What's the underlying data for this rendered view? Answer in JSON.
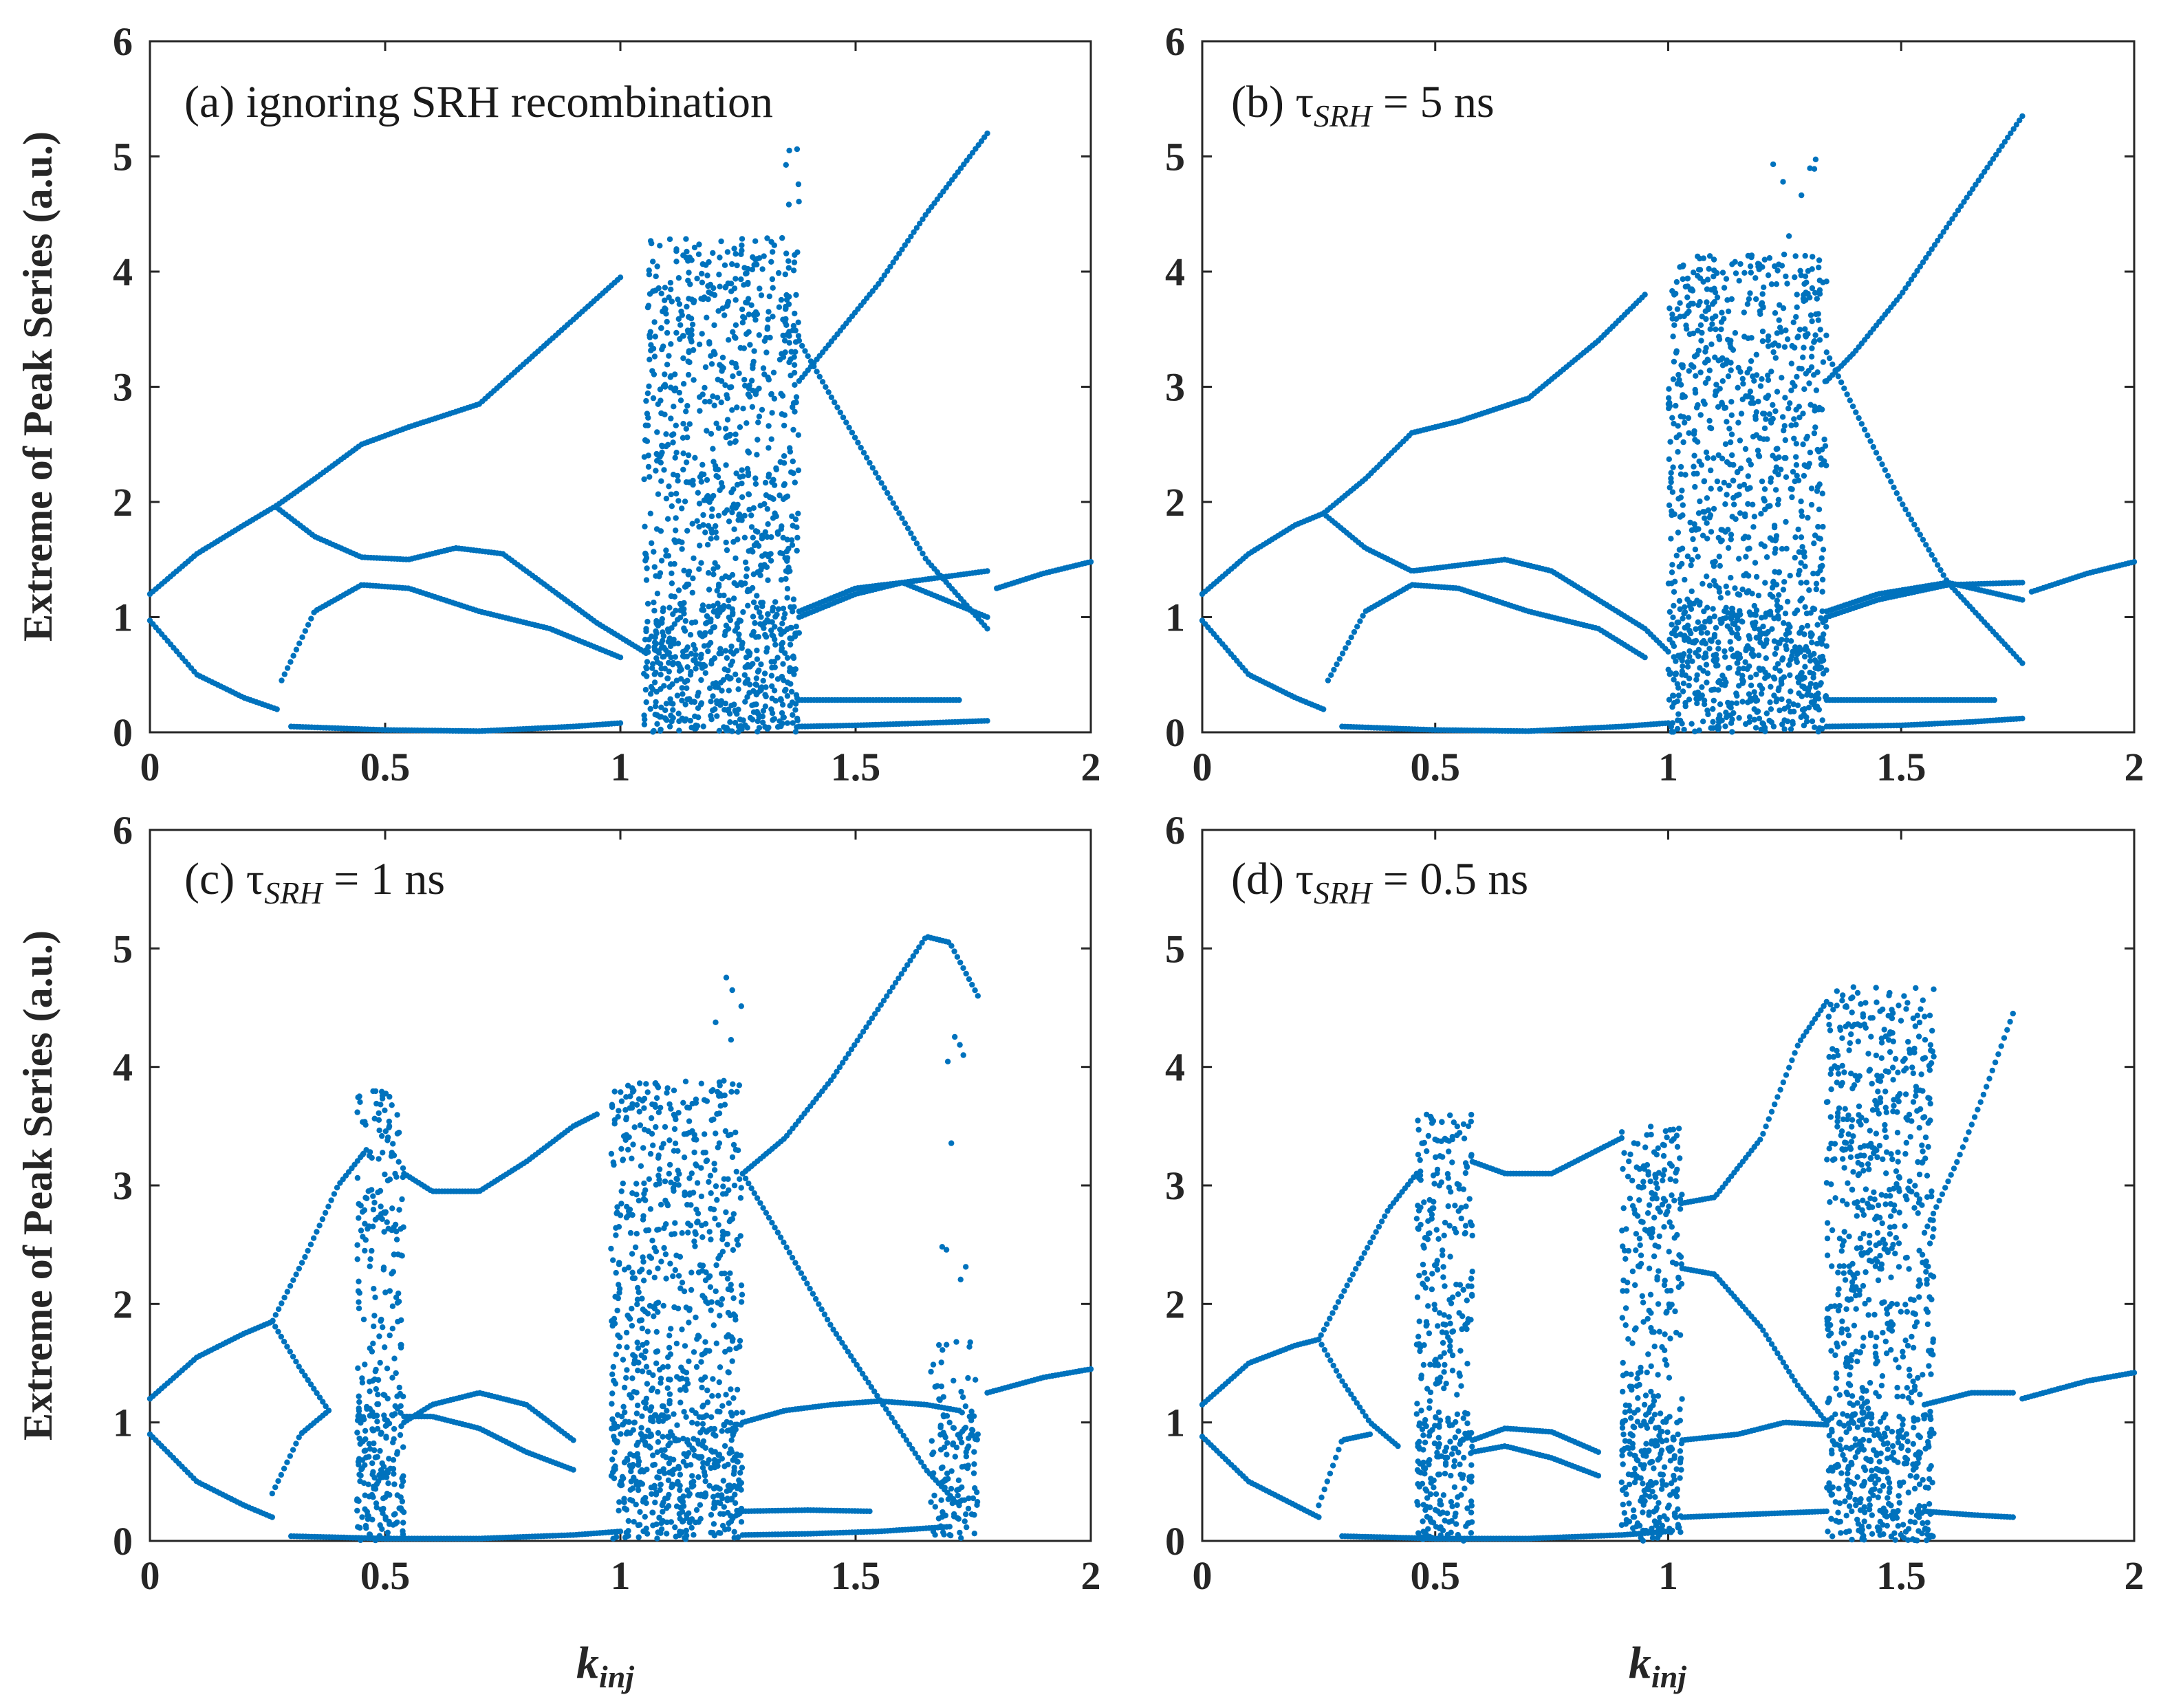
{
  "figure": {
    "ylabel": "Extreme of Peak Series (a.u.)",
    "xlabel_main": "k",
    "xlabel_sub": "inj"
  },
  "chart_data": [
    {
      "type": "scatter",
      "panel": "a",
      "annotation": {
        "prefix": "(a)  ignoring  SRH recombination",
        "tau": "",
        "sub": "",
        "suffix": ""
      },
      "xlim": [
        0,
        2
      ],
      "ylim": [
        0,
        6
      ],
      "xticks": [
        "0",
        "0.5",
        "1",
        "1.5",
        "2"
      ],
      "yticks": [
        "0",
        "1",
        "2",
        "3",
        "4",
        "5",
        "6"
      ],
      "color": "#0072BD",
      "series": [
        {
          "name": "upper",
          "x": [
            0,
            0.1,
            0.2,
            0.27,
            0.35,
            0.45,
            0.55,
            0.7,
            0.85,
            1.0
          ],
          "y": [
            1.2,
            1.55,
            1.8,
            1.97,
            2.2,
            2.5,
            2.65,
            2.85,
            3.4,
            3.95
          ]
        },
        {
          "name": "mid-upper",
          "x": [
            0.27,
            0.35,
            0.45,
            0.55,
            0.65,
            0.75,
            0.85,
            0.95,
            1.05
          ],
          "y": [
            1.95,
            1.7,
            1.52,
            1.5,
            1.6,
            1.55,
            1.25,
            0.95,
            0.7
          ]
        },
        {
          "name": "mid-lower",
          "x": [
            0.28,
            0.35,
            0.45,
            0.55,
            0.7,
            0.85,
            1.0
          ],
          "y": [
            0.45,
            1.05,
            1.28,
            1.25,
            1.05,
            0.9,
            0.65
          ]
        },
        {
          "name": "lower",
          "x": [
            0,
            0.1,
            0.2,
            0.27
          ],
          "y": [
            0.97,
            0.5,
            0.3,
            0.2
          ]
        },
        {
          "name": "floor",
          "x": [
            0.3,
            0.5,
            0.7,
            0.9,
            1.0
          ],
          "y": [
            0.05,
            0.02,
            0.01,
            0.05,
            0.08
          ]
        },
        {
          "name": "post-1",
          "x": [
            1.38,
            1.45,
            1.55,
            1.65,
            1.78
          ],
          "y": [
            3.05,
            3.4,
            3.9,
            4.5,
            5.2
          ]
        },
        {
          "name": "post-2",
          "x": [
            1.38,
            1.45,
            1.55,
            1.65,
            1.78
          ],
          "y": [
            3.4,
            2.9,
            2.2,
            1.5,
            0.9
          ]
        },
        {
          "name": "post-3",
          "x": [
            1.38,
            1.5,
            1.6,
            1.78
          ],
          "y": [
            1.0,
            1.2,
            1.3,
            1.4
          ]
        },
        {
          "name": "post-4",
          "x": [
            1.38,
            1.5,
            1.6,
            1.78
          ],
          "y": [
            1.05,
            1.25,
            1.3,
            1.0
          ]
        },
        {
          "name": "post-5",
          "x": [
            1.38,
            1.5,
            1.6,
            1.72
          ],
          "y": [
            0.28,
            0.28,
            0.28,
            0.28
          ]
        },
        {
          "name": "post-6",
          "x": [
            1.38,
            1.5,
            1.65,
            1.78
          ],
          "y": [
            0.05,
            0.06,
            0.08,
            0.1
          ]
        },
        {
          "name": "tail",
          "x": [
            1.8,
            1.9,
            2.0
          ],
          "y": [
            1.25,
            1.38,
            1.48
          ]
        }
      ],
      "chaos": [
        {
          "x": [
            1.05,
            1.38
          ],
          "y": [
            0.0,
            4.3
          ],
          "density": "high"
        },
        {
          "x": [
            1.28,
            1.38
          ],
          "y": [
            4.3,
            5.2
          ],
          "density": "sparse"
        }
      ]
    },
    {
      "type": "scatter",
      "panel": "b",
      "annotation": {
        "prefix": "(b)  ",
        "tau": "τ",
        "sub": "SRH",
        "suffix": " = 5 ns"
      },
      "xlim": [
        0,
        2
      ],
      "ylim": [
        0,
        6
      ],
      "xticks": [
        "0",
        "0.5",
        "1",
        "1.5",
        "2"
      ],
      "yticks": [
        "0",
        "1",
        "2",
        "3",
        "4",
        "5",
        "6"
      ],
      "color": "#0072BD",
      "series": [
        {
          "name": "upper",
          "x": [
            0,
            0.1,
            0.2,
            0.26,
            0.35,
            0.45,
            0.55,
            0.7,
            0.85,
            0.95
          ],
          "y": [
            1.2,
            1.55,
            1.8,
            1.9,
            2.2,
            2.6,
            2.7,
            2.9,
            3.4,
            3.8
          ]
        },
        {
          "name": "mid-upper",
          "x": [
            0.26,
            0.35,
            0.45,
            0.55,
            0.65,
            0.75,
            0.85,
            0.95,
            1.0
          ],
          "y": [
            1.9,
            1.6,
            1.4,
            1.45,
            1.5,
            1.4,
            1.15,
            0.9,
            0.7
          ]
        },
        {
          "name": "mid-lower",
          "x": [
            0.27,
            0.35,
            0.45,
            0.55,
            0.7,
            0.85,
            0.95
          ],
          "y": [
            0.45,
            1.05,
            1.28,
            1.25,
            1.05,
            0.9,
            0.65
          ]
        },
        {
          "name": "lower",
          "x": [
            0,
            0.1,
            0.2,
            0.26
          ],
          "y": [
            0.97,
            0.5,
            0.3,
            0.2
          ]
        },
        {
          "name": "floor",
          "x": [
            0.3,
            0.5,
            0.7,
            0.9,
            1.0
          ],
          "y": [
            0.05,
            0.02,
            0.01,
            0.05,
            0.08
          ]
        },
        {
          "name": "post-1",
          "x": [
            1.34,
            1.4,
            1.5,
            1.6,
            1.76
          ],
          "y": [
            3.05,
            3.3,
            3.8,
            4.4,
            5.35
          ]
        },
        {
          "name": "post-2",
          "x": [
            1.34,
            1.4,
            1.5,
            1.6,
            1.76
          ],
          "y": [
            3.3,
            2.8,
            2.0,
            1.3,
            0.6
          ]
        },
        {
          "name": "post-3",
          "x": [
            1.34,
            1.45,
            1.6,
            1.76
          ],
          "y": [
            1.0,
            1.15,
            1.28,
            1.3
          ]
        },
        {
          "name": "post-4",
          "x": [
            1.34,
            1.45,
            1.6,
            1.76
          ],
          "y": [
            1.05,
            1.2,
            1.3,
            1.15
          ]
        },
        {
          "name": "post-5",
          "x": [
            1.34,
            1.5,
            1.7
          ],
          "y": [
            0.28,
            0.28,
            0.28
          ]
        },
        {
          "name": "post-6",
          "x": [
            1.34,
            1.5,
            1.65,
            1.76
          ],
          "y": [
            0.05,
            0.06,
            0.09,
            0.12
          ]
        },
        {
          "name": "tail",
          "x": [
            1.78,
            1.9,
            2.0
          ],
          "y": [
            1.22,
            1.38,
            1.48
          ]
        }
      ],
      "chaos": [
        {
          "x": [
            1.0,
            1.34
          ],
          "y": [
            0.0,
            4.15
          ],
          "density": "high"
        },
        {
          "x": [
            1.22,
            1.32
          ],
          "y": [
            4.15,
            5.15
          ],
          "density": "sparse"
        }
      ]
    },
    {
      "type": "scatter",
      "panel": "c",
      "annotation": {
        "prefix": "(c)  ",
        "tau": "τ",
        "sub": "SRH",
        "suffix": " = 1 ns"
      },
      "xlim": [
        0,
        2
      ],
      "ylim": [
        0,
        6
      ],
      "xticks": [
        "0",
        "0.5",
        "1",
        "1.5",
        "2"
      ],
      "yticks": [
        "0",
        "1",
        "2",
        "3",
        "4",
        "5",
        "6"
      ],
      "color": "#0072BD",
      "series": [
        {
          "name": "upper",
          "x": [
            0,
            0.1,
            0.2,
            0.26,
            0.33,
            0.4,
            0.46
          ],
          "y": [
            1.2,
            1.55,
            1.75,
            1.85,
            2.4,
            3.0,
            3.3
          ]
        },
        {
          "name": "branch",
          "x": [
            0.26,
            0.32,
            0.38
          ],
          "y": [
            1.85,
            1.45,
            1.1
          ]
        },
        {
          "name": "lower",
          "x": [
            0,
            0.1,
            0.2,
            0.26
          ],
          "y": [
            0.9,
            0.5,
            0.3,
            0.2
          ]
        },
        {
          "name": "low-mid",
          "x": [
            0.26,
            0.32,
            0.38
          ],
          "y": [
            0.4,
            0.9,
            1.1
          ]
        },
        {
          "name": "floor",
          "x": [
            0.3,
            0.5,
            0.7,
            0.9,
            1.0
          ],
          "y": [
            0.04,
            0.02,
            0.02,
            0.05,
            0.08
          ]
        },
        {
          "name": "win1-upper",
          "x": [
            0.54,
            0.6,
            0.7,
            0.8,
            0.9,
            0.95
          ],
          "y": [
            3.1,
            2.95,
            2.95,
            3.2,
            3.5,
            3.6
          ]
        },
        {
          "name": "win1-mid1",
          "x": [
            0.54,
            0.6,
            0.7,
            0.8,
            0.9
          ],
          "y": [
            1.0,
            1.15,
            1.25,
            1.15,
            0.85
          ]
        },
        {
          "name": "win1-mid2",
          "x": [
            0.54,
            0.6,
            0.7,
            0.8,
            0.9
          ],
          "y": [
            1.05,
            1.05,
            0.95,
            0.75,
            0.6
          ]
        },
        {
          "name": "post-1",
          "x": [
            1.26,
            1.35,
            1.45,
            1.55,
            1.65,
            1.7,
            1.76
          ],
          "y": [
            3.1,
            3.4,
            3.9,
            4.5,
            5.1,
            5.05,
            4.6
          ]
        },
        {
          "name": "post-2",
          "x": [
            1.26,
            1.35,
            1.45,
            1.55,
            1.65,
            1.72
          ],
          "y": [
            3.1,
            2.5,
            1.8,
            1.2,
            0.6,
            0.3
          ]
        },
        {
          "name": "post-3",
          "x": [
            1.26,
            1.35,
            1.45,
            1.55,
            1.65,
            1.72
          ],
          "y": [
            1.0,
            1.1,
            1.15,
            1.18,
            1.15,
            1.1
          ]
        },
        {
          "name": "post-4",
          "x": [
            1.26,
            1.4,
            1.53
          ],
          "y": [
            0.25,
            0.26,
            0.25
          ]
        },
        {
          "name": "post-5",
          "x": [
            1.26,
            1.4,
            1.55,
            1.7
          ],
          "y": [
            0.05,
            0.06,
            0.08,
            0.12
          ]
        },
        {
          "name": "tail",
          "x": [
            1.78,
            1.9,
            2.0
          ],
          "y": [
            1.25,
            1.38,
            1.45
          ]
        }
      ],
      "chaos": [
        {
          "x": [
            0.44,
            0.54
          ],
          "y": [
            0.0,
            3.8
          ],
          "density": "high"
        },
        {
          "x": [
            0.98,
            1.26
          ],
          "y": [
            0.0,
            3.9
          ],
          "density": "high"
        },
        {
          "x": [
            1.2,
            1.26
          ],
          "y": [
            3.9,
            5.0
          ],
          "density": "sparse"
        },
        {
          "x": [
            1.66,
            1.76
          ],
          "y": [
            0.0,
            1.7
          ],
          "density": "medium"
        },
        {
          "x": [
            1.68,
            1.74
          ],
          "y": [
            2.2,
            4.3
          ],
          "density": "sparse"
        }
      ]
    },
    {
      "type": "scatter",
      "panel": "d",
      "annotation": {
        "prefix": "(d)  ",
        "tau": "τ",
        "sub": "SRH",
        "suffix": " = 0.5 ns"
      },
      "xlim": [
        0,
        2
      ],
      "ylim": [
        0,
        6
      ],
      "xticks": [
        "0",
        "0.5",
        "1",
        "1.5",
        "2"
      ],
      "yticks": [
        "0",
        "1",
        "2",
        "3",
        "4",
        "5",
        "6"
      ],
      "color": "#0072BD",
      "series": [
        {
          "name": "upper",
          "x": [
            0,
            0.1,
            0.2,
            0.25,
            0.33,
            0.4,
            0.46
          ],
          "y": [
            1.15,
            1.5,
            1.65,
            1.7,
            2.3,
            2.8,
            3.1
          ]
        },
        {
          "name": "branch",
          "x": [
            0.25,
            0.3,
            0.36,
            0.42
          ],
          "y": [
            1.7,
            1.35,
            1.0,
            0.8
          ]
        },
        {
          "name": "lower",
          "x": [
            0,
            0.1,
            0.2,
            0.25
          ],
          "y": [
            0.88,
            0.5,
            0.3,
            0.2
          ]
        },
        {
          "name": "low-mid",
          "x": [
            0.25,
            0.3,
            0.36
          ],
          "y": [
            0.3,
            0.85,
            0.9
          ]
        },
        {
          "name": "floor",
          "x": [
            0.3,
            0.5,
            0.7,
            0.9,
            1.0
          ],
          "y": [
            0.04,
            0.02,
            0.02,
            0.05,
            0.08
          ]
        },
        {
          "name": "win1-upper",
          "x": [
            0.58,
            0.65,
            0.75,
            0.85,
            0.9
          ],
          "y": [
            3.2,
            3.1,
            3.1,
            3.3,
            3.4
          ]
        },
        {
          "name": "win1-mid1",
          "x": [
            0.58,
            0.65,
            0.75,
            0.85
          ],
          "y": [
            0.85,
            0.95,
            0.92,
            0.75
          ]
        },
        {
          "name": "win1-mid2",
          "x": [
            0.58,
            0.65,
            0.75,
            0.85
          ],
          "y": [
            0.75,
            0.8,
            0.7,
            0.55
          ]
        },
        {
          "name": "win2-upper",
          "x": [
            1.03,
            1.1,
            1.2,
            1.28,
            1.34
          ],
          "y": [
            2.85,
            2.9,
            3.4,
            4.2,
            4.55
          ]
        },
        {
          "name": "win2-mid",
          "x": [
            1.03,
            1.1,
            1.2,
            1.28,
            1.34
          ],
          "y": [
            2.3,
            2.25,
            1.8,
            1.3,
            1.0
          ]
        },
        {
          "name": "win2-low1",
          "x": [
            1.03,
            1.15,
            1.25,
            1.34
          ],
          "y": [
            0.85,
            0.9,
            1.0,
            0.98
          ]
        },
        {
          "name": "win2-low2",
          "x": [
            1.03,
            1.15,
            1.34
          ],
          "y": [
            0.2,
            0.22,
            0.25
          ]
        },
        {
          "name": "post-1",
          "x": [
            1.55,
            1.62,
            1.68,
            1.74
          ],
          "y": [
            2.6,
            3.2,
            3.8,
            4.45
          ]
        },
        {
          "name": "post-2",
          "x": [
            1.55,
            1.65,
            1.74
          ],
          "y": [
            1.15,
            1.25,
            1.25
          ]
        },
        {
          "name": "post-3",
          "x": [
            1.55,
            1.65,
            1.74
          ],
          "y": [
            0.25,
            0.22,
            0.2
          ]
        },
        {
          "name": "tail",
          "x": [
            1.76,
            1.9,
            2.0
          ],
          "y": [
            1.2,
            1.35,
            1.42
          ]
        }
      ],
      "chaos": [
        {
          "x": [
            0.46,
            0.58
          ],
          "y": [
            0.0,
            3.6
          ],
          "density": "high"
        },
        {
          "x": [
            0.9,
            1.03
          ],
          "y": [
            0.0,
            3.5
          ],
          "density": "high"
        },
        {
          "x": [
            1.34,
            1.57
          ],
          "y": [
            0.0,
            4.7
          ],
          "density": "high"
        }
      ]
    }
  ]
}
